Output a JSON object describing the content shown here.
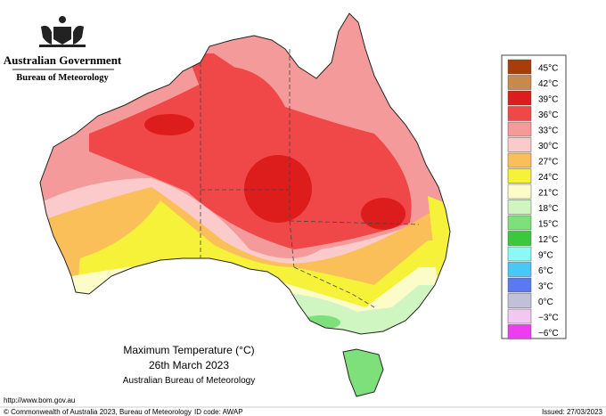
{
  "header": {
    "government": "Australian Government",
    "bureau": "Bureau of Meteorology"
  },
  "map": {
    "title": "Maximum Temperature (°C)",
    "date": "26th March 2023",
    "source": "Australian Bureau of Meteorology"
  },
  "legend": {
    "items": [
      {
        "label": "45°C",
        "color": "#a83c0a"
      },
      {
        "label": "42°C",
        "color": "#c8894f"
      },
      {
        "label": "39°C",
        "color": "#dd1c1c"
      },
      {
        "label": "36°C",
        "color": "#f04848"
      },
      {
        "label": "33°C",
        "color": "#f59a9a"
      },
      {
        "label": "30°C",
        "color": "#fbcaca"
      },
      {
        "label": "27°C",
        "color": "#fbbf5a"
      },
      {
        "label": "24°C",
        "color": "#f6f23a"
      },
      {
        "label": "21°C",
        "color": "#fcfcc8"
      },
      {
        "label": "18°C",
        "color": "#cff5c0"
      },
      {
        "label": "15°C",
        "color": "#7ee07a"
      },
      {
        "label": "12°C",
        "color": "#3cc83c"
      },
      {
        "label": "9°C",
        "color": "#8cf8f8"
      },
      {
        "label": "6°C",
        "color": "#48c8f4"
      },
      {
        "label": "3°C",
        "color": "#5a78f0"
      },
      {
        "label": "0°C",
        "color": "#c0c0d8"
      },
      {
        "label": "−3°C",
        "color": "#f0c8f0"
      },
      {
        "label": "−6°C",
        "color": "#f03cf0"
      }
    ]
  },
  "footer": {
    "url": "http://www.bom.gov.au",
    "copyright": "© Commonwealth of Australia 2023, Bureau of Meteorology",
    "id_code": "ID code: AWAP",
    "issued": "Issued: 27/03/2023"
  }
}
